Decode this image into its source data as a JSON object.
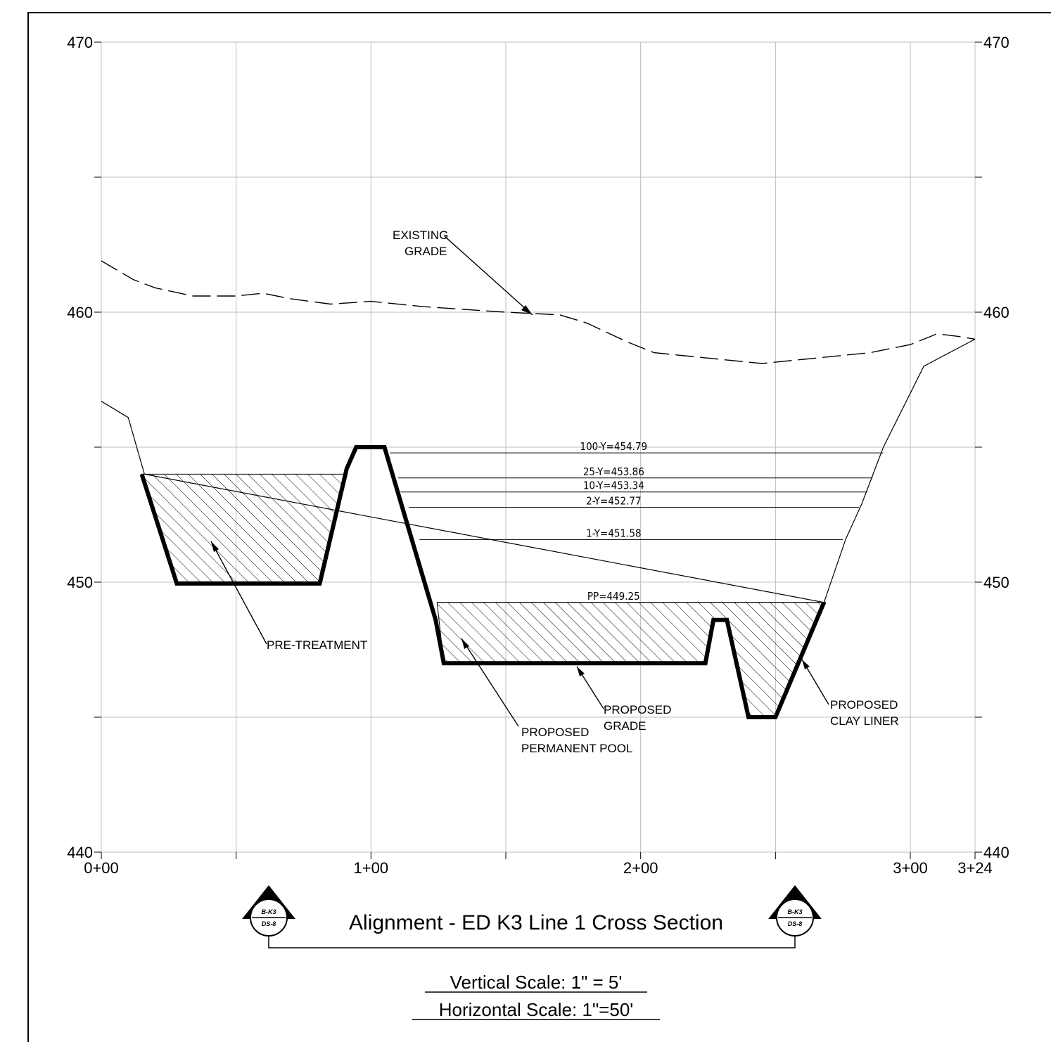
{
  "title": "Alignment - ED K3 Line 1 Cross Section",
  "vertical_scale": "Vertical Scale: 1\" = 5'",
  "horizontal_scale": "Horizontal Scale: 1\"=50'",
  "section_marker": {
    "top": "B-K3",
    "bottom": "DS-8"
  },
  "labels": {
    "existing_grade_1": "EXISTING",
    "existing_grade_2": "GRADE",
    "pre_treatment": "PRE-TREATMENT",
    "permanent_pool_1": "PROPOSED",
    "permanent_pool_2": "PERMANENT POOL",
    "proposed_grade_1": "PROPOSED",
    "proposed_grade_2": "GRADE",
    "clay_liner_1": "PROPOSED",
    "clay_liner_2": "CLAY LINER"
  },
  "chart_data": {
    "type": "line",
    "x_axis": {
      "min": 0,
      "max": 324,
      "unit": "ft (station)"
    },
    "y_axis": {
      "min": 440,
      "max": 470,
      "unit": "ft (elevation)"
    },
    "x_tick_labels": [
      {
        "value": 0,
        "label": "0+00"
      },
      {
        "value": 100,
        "label": "1+00"
      },
      {
        "value": 200,
        "label": "2+00"
      },
      {
        "value": 300,
        "label": "3+00"
      },
      {
        "value": 324,
        "label": "3+24"
      }
    ],
    "y_tick_labels": [
      {
        "value": 470,
        "label": "470"
      },
      {
        "value": 460,
        "label": "460"
      },
      {
        "value": 450,
        "label": "450"
      },
      {
        "value": 440,
        "label": "440"
      }
    ],
    "grid": true,
    "grid_x": [
      0,
      50,
      100,
      150,
      200,
      250,
      300,
      324
    ],
    "grid_y": [
      440,
      445,
      450,
      455,
      460,
      465,
      470
    ],
    "water_levels": [
      {
        "label": "100-Y=454.79",
        "elevation": 454.79,
        "x_start": 107,
        "x_end": 290
      },
      {
        "label": "25-Y=453.86",
        "elevation": 453.86,
        "x_start": 110,
        "x_end": 286
      },
      {
        "label": "10-Y=453.34",
        "elevation": 453.34,
        "x_start": 111,
        "x_end": 284
      },
      {
        "label": "2-Y=452.77",
        "elevation": 452.77,
        "x_start": 114,
        "x_end": 281
      },
      {
        "label": "1-Y=451.58",
        "elevation": 451.58,
        "x_start": 118,
        "x_end": 275
      },
      {
        "label": "PP=449.25",
        "elevation": 449.25,
        "x_start": 124.5,
        "x_end": 268.5
      }
    ],
    "series": [
      {
        "key": "existing_grade",
        "style": "dashed",
        "points": [
          [
            0,
            461.9
          ],
          [
            12,
            461.2
          ],
          [
            20,
            460.9
          ],
          [
            34,
            460.6
          ],
          [
            50,
            460.6
          ],
          [
            60,
            460.7
          ],
          [
            70,
            460.5
          ],
          [
            85,
            460.3
          ],
          [
            100,
            460.4
          ],
          [
            120,
            460.2
          ],
          [
            150,
            460.0
          ],
          [
            170,
            459.9
          ],
          [
            180,
            459.6
          ],
          [
            195,
            458.9
          ],
          [
            205,
            458.5
          ],
          [
            225,
            458.3
          ],
          [
            245,
            458.1
          ],
          [
            265,
            458.3
          ],
          [
            285,
            458.5
          ],
          [
            300,
            458.8
          ],
          [
            310,
            459.2
          ],
          [
            318,
            459.1
          ],
          [
            324,
            459.0
          ]
        ]
      },
      {
        "key": "natural_ground",
        "style": "thin",
        "points": [
          [
            0,
            456.7
          ],
          [
            10,
            456.1
          ],
          [
            16,
            454.0
          ],
          [
            268,
            449.25
          ],
          [
            276,
            451.58
          ],
          [
            282,
            452.9
          ],
          [
            290,
            455.0
          ],
          [
            305,
            458.0
          ],
          [
            324,
            459.0
          ]
        ]
      },
      {
        "key": "pretreatment_liner",
        "style": "heavy",
        "points": [
          [
            15,
            454
          ],
          [
            28,
            449.95
          ],
          [
            81,
            449.95
          ],
          [
            91,
            454.2
          ],
          [
            94.5,
            455.0
          ],
          [
            105,
            455.0
          ],
          [
            124,
            448.6
          ],
          [
            127,
            447.0
          ],
          [
            224,
            447.0
          ],
          [
            227,
            448.6
          ],
          [
            232,
            448.6
          ],
          [
            240,
            445.0
          ],
          [
            250,
            445.0
          ],
          [
            268,
            449.25
          ]
        ]
      }
    ],
    "hatched_areas": [
      {
        "key": "pre_treatment_fill",
        "points": [
          [
            15,
            454
          ],
          [
            91,
            454
          ],
          [
            81,
            449.95
          ],
          [
            28,
            449.95
          ]
        ]
      },
      {
        "key": "permanent_pool_fill",
        "points": [
          [
            124.5,
            449.25
          ],
          [
            268.5,
            449.25
          ],
          [
            250,
            445.0
          ],
          [
            240,
            445.0
          ],
          [
            232,
            448.6
          ],
          [
            227,
            448.6
          ],
          [
            224,
            447.0
          ],
          [
            127,
            447.0
          ]
        ]
      }
    ]
  }
}
